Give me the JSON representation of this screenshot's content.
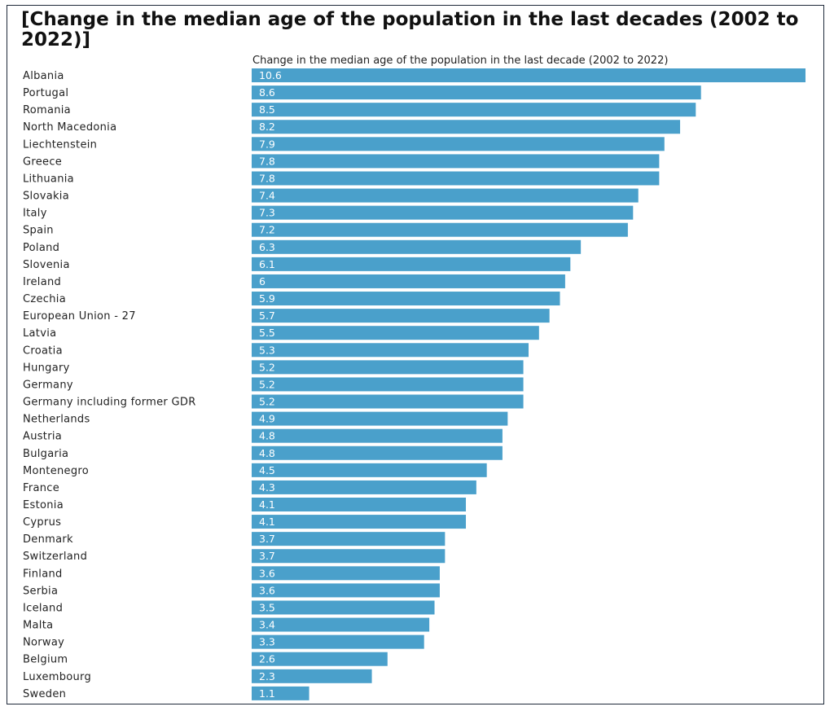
{
  "title": "[Change in the median age of the population in the last decades (2002 to 2022)]",
  "colors": {
    "bar": "#4aa0cb",
    "text": "#222222",
    "frame": "#1f2a3a"
  },
  "chart_data": {
    "type": "bar",
    "orientation": "horizontal",
    "title": "[Change in the median age of the population in the last decades (2002 to 2022)]",
    "series": [
      {
        "name": "Change in the median age of the population in the last decade (2002 to 2022)",
        "values": [
          10.6,
          8.6,
          8.5,
          8.2,
          7.9,
          7.8,
          7.8,
          7.4,
          7.3,
          7.2,
          6.3,
          6.1,
          6,
          5.9,
          5.7,
          5.5,
          5.3,
          5.2,
          5.2,
          5.2,
          4.9,
          4.8,
          4.8,
          4.5,
          4.3,
          4.1,
          4.1,
          3.7,
          3.7,
          3.6,
          3.6,
          3.5,
          3.4,
          3.3,
          2.6,
          2.3,
          1.1
        ]
      }
    ],
    "categories": [
      "Albania",
      "Portugal",
      "Romania",
      "North Macedonia",
      "Liechtenstein",
      "Greece",
      "Lithuania",
      "Slovakia",
      "Italy",
      "Spain",
      "Poland",
      "Slovenia",
      "Ireland",
      "Czechia",
      "European Union - 27",
      "Latvia",
      "Croatia",
      "Hungary",
      "Germany",
      "Germany including former GDR",
      "Netherlands",
      "Austria",
      "Bulgaria",
      "Montenegro",
      "France",
      "Estonia",
      "Cyprus",
      "Denmark",
      "Switzerland",
      "Finland",
      "Serbia",
      "Iceland",
      "Malta",
      "Norway",
      "Belgium",
      "Luxembourg",
      "Sweden"
    ],
    "xlim": [
      0,
      10.6
    ],
    "grid": false,
    "data_labels": true,
    "legend": "top"
  }
}
